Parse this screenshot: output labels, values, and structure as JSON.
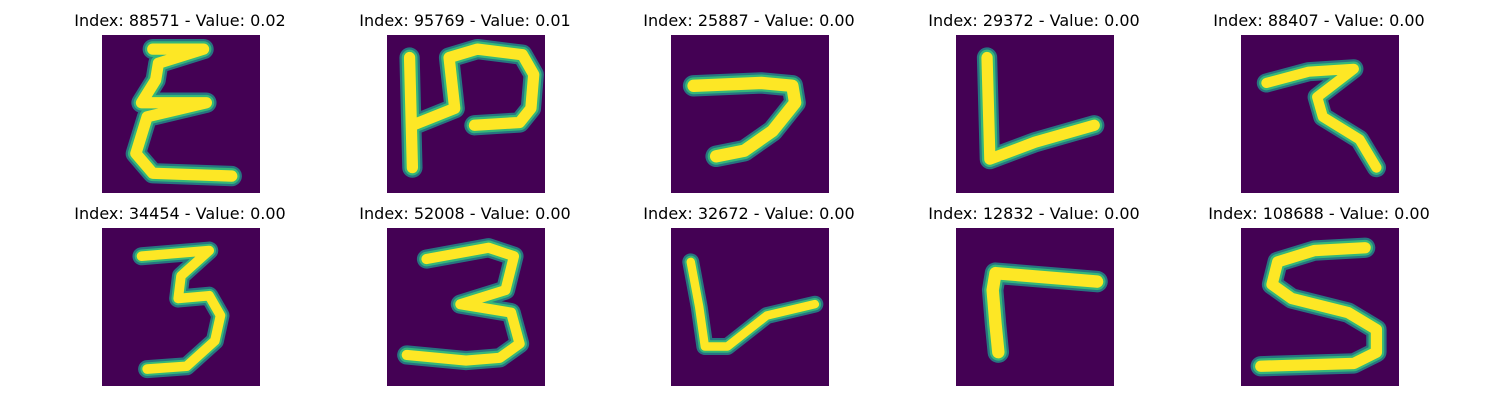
{
  "colors": {
    "background": "#440154",
    "stroke_core": "#fde725",
    "stroke_edge": "#35b779",
    "stroke_halo": "#21918c"
  },
  "panels": [
    {
      "title": "Index: 88571 - Value: 0.02",
      "glyph": "Σ-like handwritten character"
    },
    {
      "title": "Index: 95769 - Value: 0.01",
      "glyph": "P-like handwritten character"
    },
    {
      "title": "Index: 25887 - Value: 0.00",
      "glyph": "7-like handwritten character"
    },
    {
      "title": "Index: 29372 - Value: 0.00",
      "glyph": "L-like handwritten character"
    },
    {
      "title": "Index: 88407 - Value: 0.00",
      "glyph": "Z-like handwritten character"
    },
    {
      "title": "Index: 34454 - Value: 0.00",
      "glyph": "3-like handwritten character"
    },
    {
      "title": "Index: 52008 - Value: 0.00",
      "glyph": "3-like handwritten character"
    },
    {
      "title": "Index: 32672 - Value: 0.00",
      "glyph": "L-like handwritten character"
    },
    {
      "title": "Index: 12832 - Value: 0.00",
      "glyph": "Г-like handwritten character"
    },
    {
      "title": "Index: 108688 - Value: 0.00",
      "glyph": "S-like handwritten character"
    }
  ]
}
